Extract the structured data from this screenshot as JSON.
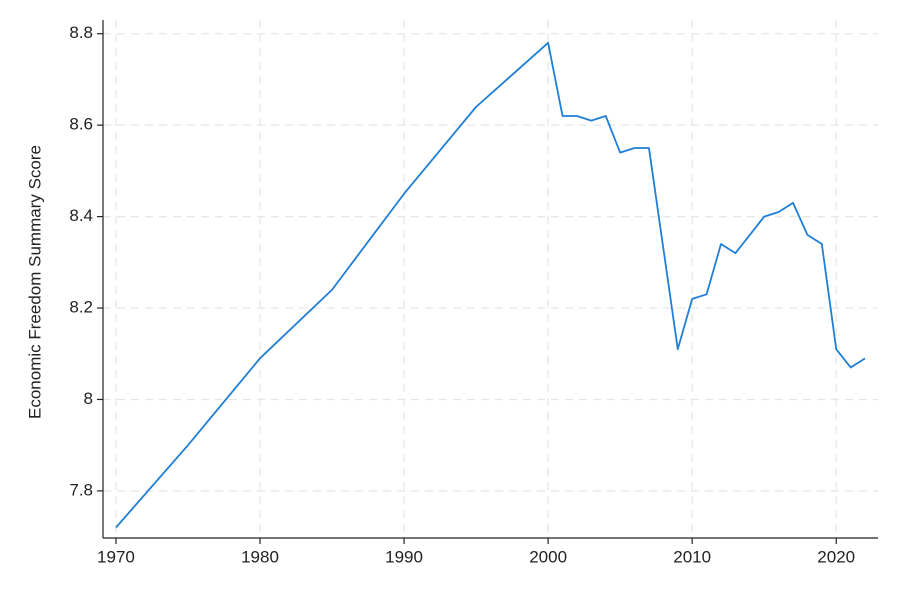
{
  "chart_data": {
    "type": "line",
    "y_label": "Economic Freedom Summary Score",
    "x": [
      1970,
      1975,
      1980,
      1985,
      1990,
      1995,
      2000,
      2001,
      2002,
      2003,
      2004,
      2005,
      2006,
      2007,
      2008,
      2009,
      2010,
      2011,
      2012,
      2013,
      2014,
      2015,
      2016,
      2017,
      2018,
      2019,
      2020,
      2021,
      2022
    ],
    "series": [
      {
        "name": "Economic Freedom Summary Score",
        "color": "#1f7fd6",
        "values": [
          7.72,
          7.9,
          8.09,
          8.24,
          8.45,
          8.64,
          8.78,
          8.62,
          8.62,
          8.61,
          8.62,
          8.54,
          8.55,
          8.55,
          8.33,
          8.11,
          8.22,
          8.23,
          8.34,
          8.32,
          8.36,
          8.4,
          8.41,
          8.43,
          8.36,
          8.34,
          8.11,
          8.07,
          8.09
        ]
      }
    ],
    "xlim": [
      1969.1,
      2022.9
    ],
    "xticks": [
      1970,
      1980,
      1990,
      2000,
      2010,
      2020
    ],
    "ylim": [
      7.697,
      8.83
    ],
    "yticks": [
      7.8,
      8,
      8.2,
      8.4,
      8.6,
      8.8
    ],
    "grid": true
  }
}
